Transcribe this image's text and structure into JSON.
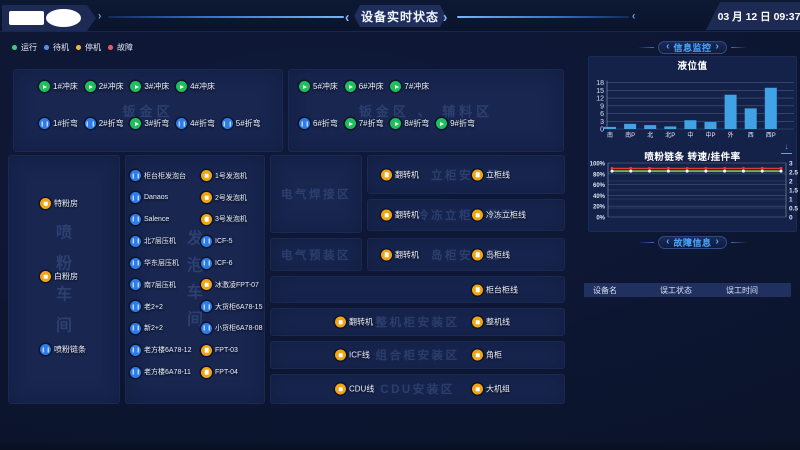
{
  "header": {
    "title": "设备实时状态",
    "datetime": "03 月 12 日 09:37"
  },
  "legend": [
    {
      "label": "运行",
      "status": "run",
      "color": "#1fbf5c"
    },
    {
      "label": "待机",
      "status": "standby",
      "color": "#2e7ce8"
    },
    {
      "label": "停机",
      "status": "stop",
      "color": "#f2a513"
    },
    {
      "label": "故障",
      "status": "fault",
      "color": "#e23b38"
    }
  ],
  "zones": {
    "banjin": {
      "watermark": "钣金区",
      "rows": [
        [
          {
            "label": "1#冲床",
            "status": "run"
          },
          {
            "label": "2#冲床",
            "status": "run"
          },
          {
            "label": "3#冲床",
            "status": "run"
          },
          {
            "label": "4#冲床",
            "status": "run"
          }
        ],
        [
          {
            "label": "1#折弯",
            "status": "standby"
          },
          {
            "label": "2#折弯",
            "status": "standby"
          },
          {
            "label": "3#折弯",
            "status": "run"
          },
          {
            "label": "4#折弯",
            "status": "standby"
          },
          {
            "label": "5#折弯",
            "status": "standby"
          }
        ]
      ]
    },
    "fuliao": {
      "watermark": "钣金区 、 辅料区",
      "rows": [
        [
          {
            "label": "5#冲床",
            "status": "run"
          },
          {
            "label": "6#冲床",
            "status": "run"
          },
          {
            "label": "7#冲床",
            "status": "run"
          }
        ],
        [
          {
            "label": "6#折弯",
            "status": "standby"
          },
          {
            "label": "7#折弯",
            "status": "run"
          },
          {
            "label": "8#折弯",
            "status": "run"
          },
          {
            "label": "9#折弯",
            "status": "run"
          }
        ]
      ]
    },
    "penfen": {
      "watermark": "喷粉车间",
      "items": [
        {
          "label": "特粉房",
          "status": "stop"
        },
        {
          "label": "白粉房",
          "status": "stop"
        },
        {
          "label": "喷粉链条",
          "status": "standby"
        }
      ]
    },
    "fapao": {
      "watermark": "发泡车间",
      "columns": [
        [
          {
            "label": "柜台柜发泡台",
            "status": "standby"
          },
          {
            "label": "Danaos",
            "status": "standby"
          },
          {
            "label": "Salence",
            "status": "standby"
          },
          {
            "label": "北7层压机",
            "status": "standby"
          },
          {
            "label": "华东层压机",
            "status": "standby"
          },
          {
            "label": "南7层压机",
            "status": "standby"
          },
          {
            "label": "老2+2",
            "status": "standby"
          },
          {
            "label": "新2+2",
            "status": "standby"
          },
          {
            "label": "老方楼6A78-12",
            "status": "standby"
          },
          {
            "label": "老方楼6A78-11",
            "status": "standby"
          }
        ],
        [
          {
            "label": "1号发泡机",
            "status": "stop"
          },
          {
            "label": "2号发泡机",
            "status": "stop"
          },
          {
            "label": "3号发泡机",
            "status": "stop"
          },
          {
            "label": "ICF-5",
            "status": "standby"
          },
          {
            "label": "ICF-6",
            "status": "standby"
          },
          {
            "label": "冰激凌FPT-07",
            "status": "stop"
          },
          {
            "label": "大货柜6A78-15",
            "status": "standby"
          },
          {
            "label": "小货柜6A78-08",
            "status": "standby"
          },
          {
            "label": "FPT-03",
            "status": "stop"
          },
          {
            "label": "FPT-04",
            "status": "stop"
          }
        ]
      ]
    },
    "hanjie": {
      "watermark": "电气焊接区",
      "items": []
    },
    "yuzhuang": {
      "watermark": "电气预装区",
      "items": []
    },
    "ligui": {
      "watermark": "立柜安装区",
      "items": [
        {
          "label": "翻转机",
          "status": "stop"
        },
        {
          "label": "立柜线",
          "status": "stop"
        }
      ]
    },
    "lengli": {
      "watermark": "冷冻立柜安装区",
      "items": [
        {
          "label": "翻转机",
          "status": "stop"
        },
        {
          "label": "冷冻立柜线",
          "status": "stop"
        }
      ]
    },
    "daogui": {
      "watermark": "岛柜安装区",
      "items": [
        {
          "label": "翻转机",
          "status": "stop"
        },
        {
          "label": "岛柜线",
          "status": "stop"
        }
      ]
    },
    "guitai": {
      "watermark": "",
      "items": [
        {
          "label": "柜台柜线",
          "status": "stop"
        }
      ]
    },
    "zhengji": {
      "watermark": "整机柜安装区",
      "items": [
        {
          "label": "翻转机",
          "status": "stop"
        },
        {
          "label": "整机线",
          "status": "stop"
        }
      ]
    },
    "zuhe": {
      "watermark": "组合柜安装区",
      "items": [
        {
          "label": "ICF线",
          "status": "stop"
        },
        {
          "label": "角柜",
          "status": "stop"
        }
      ]
    },
    "cdu": {
      "watermark": "CDU安装区",
      "items": [
        {
          "label": "CDU线",
          "status": "stop"
        },
        {
          "label": "大机组",
          "status": "stop"
        }
      ]
    }
  },
  "sidebar": {
    "monitor_header": "信息监控",
    "fault_header": "故障信息",
    "table": {
      "columns": [
        "设备名",
        "误工状态",
        "误工时间"
      ],
      "rows": []
    }
  },
  "chart_data": [
    {
      "type": "bar",
      "title": "液位值",
      "categories": [
        "南",
        "南P",
        "北",
        "北P",
        "中",
        "中P",
        "外",
        "西",
        "西P"
      ],
      "values": [
        0.8,
        2.0,
        1.5,
        1.0,
        3.4,
        2.7,
        13.3,
        8.0,
        16.0
      ],
      "xlabel": "",
      "ylabel": "",
      "ylim": [
        0,
        18
      ],
      "yticks": [
        0,
        3,
        6,
        9,
        12,
        15,
        18
      ],
      "bar_color": "#41a2e6",
      "grid": true,
      "legend_position": "none"
    },
    {
      "type": "line",
      "title": "喷粉链条 转速/挂件率",
      "x": [
        1,
        2,
        3,
        4,
        5,
        6,
        7,
        8,
        9,
        10
      ],
      "left_axis": {
        "ticks": [
          "0%",
          "20%",
          "40%",
          "60%",
          "80%",
          "100%"
        ],
        "range": [
          0,
          100
        ]
      },
      "right_axis": {
        "ticks": [
          "0",
          "0.5",
          "1",
          "1.5",
          "2",
          "2.5",
          "3"
        ],
        "range": [
          0,
          3
        ]
      },
      "series": [
        {
          "name": "转速",
          "color": "#e03a34",
          "marker": "#e03a34",
          "values": [
            90,
            90,
            90,
            90,
            90,
            90,
            90,
            90,
            90,
            90
          ]
        },
        {
          "name": "挂件率",
          "color": "#a4d44e",
          "marker": "#ffffff",
          "values": [
            85,
            85,
            85,
            85,
            85,
            85,
            85,
            85,
            85,
            85
          ]
        }
      ],
      "grid": true,
      "legend_position": "none"
    }
  ]
}
